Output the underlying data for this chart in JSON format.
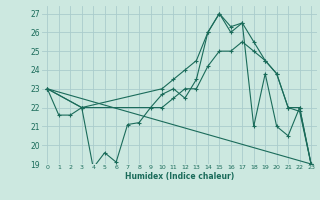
{
  "xlabel": "Humidex (Indice chaleur)",
  "bg_color": "#cce8e0",
  "grid_color": "#aacccc",
  "line_color": "#1a6b5a",
  "xlim": [
    -0.5,
    23.5
  ],
  "ylim": [
    19,
    27.4
  ],
  "xticks": [
    0,
    1,
    2,
    3,
    4,
    5,
    6,
    7,
    8,
    9,
    10,
    11,
    12,
    13,
    14,
    15,
    16,
    17,
    18,
    19,
    20,
    21,
    22,
    23
  ],
  "yticks": [
    19,
    20,
    21,
    22,
    23,
    24,
    25,
    26,
    27
  ],
  "series": {
    "main": {
      "x": [
        0,
        1,
        2,
        3,
        4,
        5,
        6,
        7,
        8,
        9,
        10,
        11,
        12,
        13,
        14,
        15,
        16,
        17,
        18,
        19,
        20,
        21,
        22,
        23
      ],
      "y": [
        23,
        21.6,
        21.6,
        22,
        18.8,
        19.6,
        19.1,
        21.1,
        21.2,
        22,
        22.7,
        23,
        22.5,
        23.5,
        26,
        27,
        26,
        26.5,
        21,
        23.8,
        21,
        20.5,
        22,
        19
      ]
    },
    "upper": {
      "x": [
        0,
        3,
        10,
        11,
        12,
        13,
        14,
        15,
        16,
        17,
        18,
        19,
        20,
        21,
        22,
        23
      ],
      "y": [
        23,
        22,
        23,
        23.5,
        24,
        24.5,
        26,
        27,
        26.3,
        26.5,
        25.5,
        24.5,
        23.8,
        22,
        22,
        19
      ]
    },
    "lower": {
      "x": [
        0,
        3,
        10,
        11,
        12,
        13,
        14,
        15,
        16,
        17,
        18,
        19,
        20,
        21,
        22,
        23
      ],
      "y": [
        23,
        22,
        22,
        22.5,
        23,
        23,
        24.2,
        25,
        25,
        25.5,
        25,
        24.5,
        23.8,
        22,
        21.8,
        19
      ]
    },
    "trend": {
      "x": [
        0,
        23
      ],
      "y": [
        23,
        19
      ]
    }
  }
}
